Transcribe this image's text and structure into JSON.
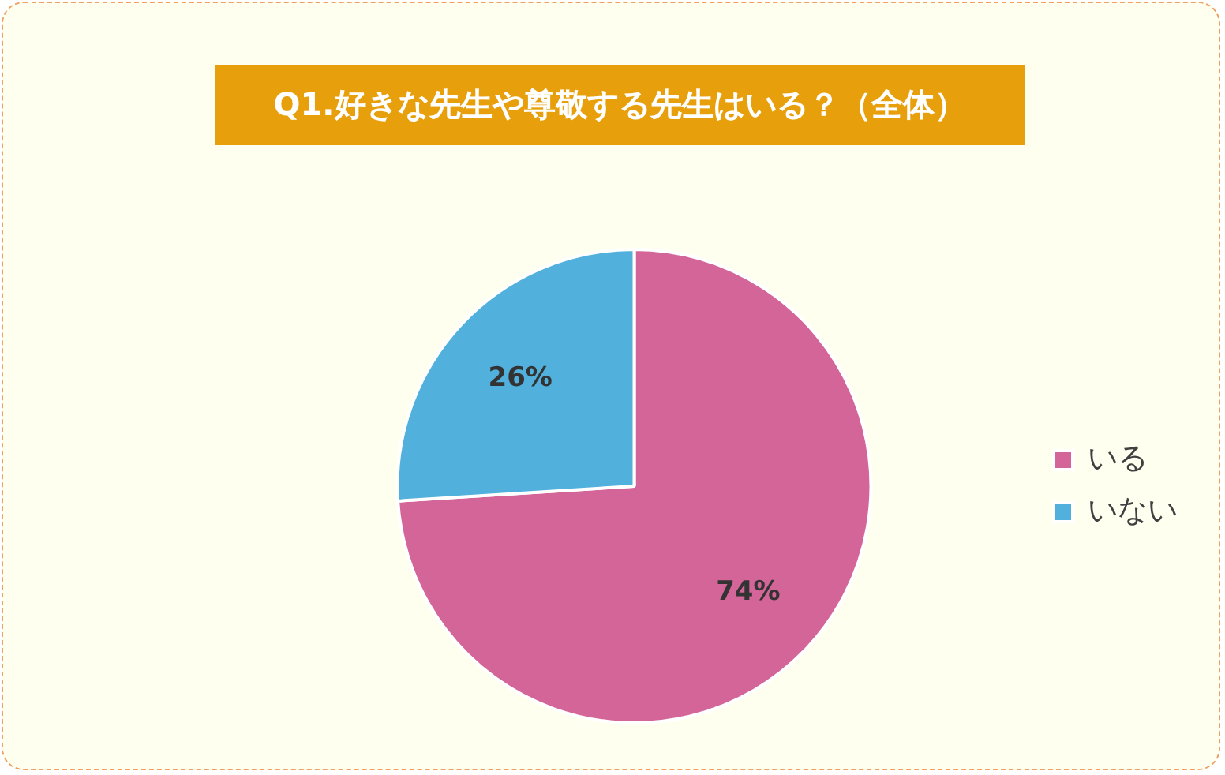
{
  "chart_data": {
    "type": "pie",
    "title": "Q1.好きな先生や尊敬する先生はいる？（全体）",
    "categories": [
      "いる",
      "いない"
    ],
    "values": [
      74,
      26
    ],
    "value_labels": [
      "74%",
      "26%"
    ],
    "colors": [
      "#d46598",
      "#52b0dd"
    ],
    "legend": "right"
  }
}
